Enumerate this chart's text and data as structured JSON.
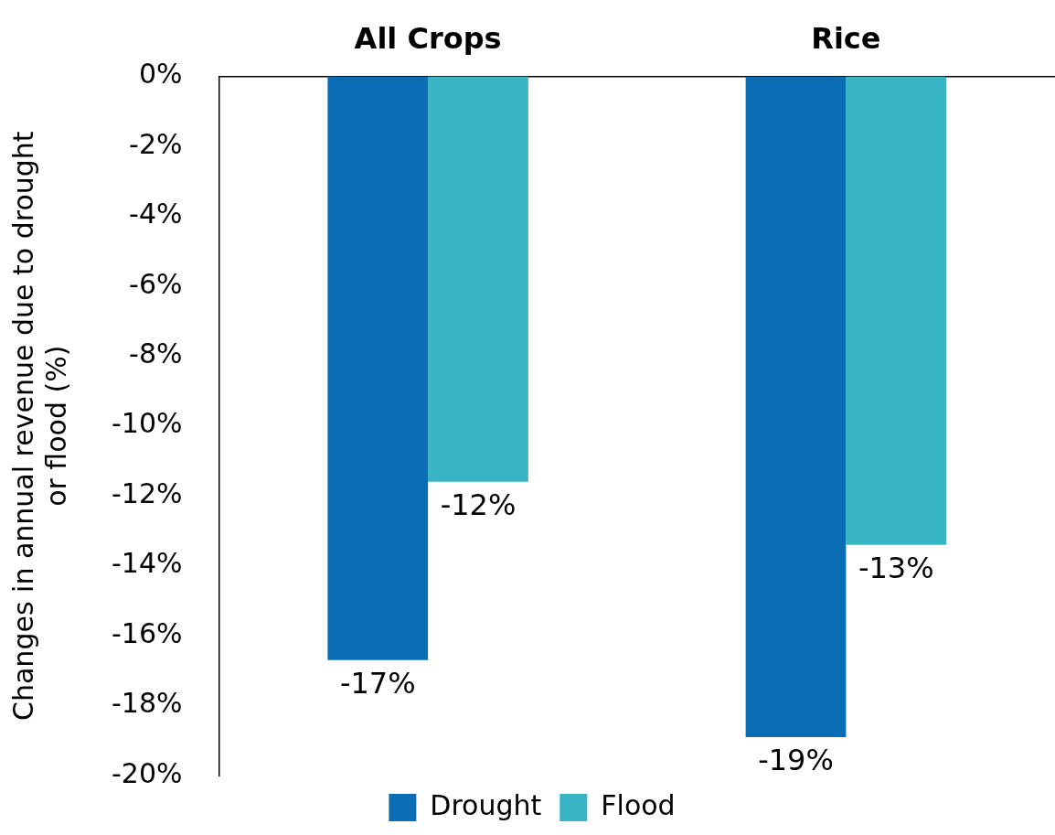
{
  "chart_data": {
    "type": "bar",
    "ylabel": "Changes in annual revenue due to drought or flood (%)",
    "categories": [
      "All Crops",
      "Rice"
    ],
    "series": [
      {
        "name": "Drought",
        "color": "#0b6eb4",
        "values": [
          -16.7,
          -18.9
        ],
        "value_labels": [
          "-17%",
          "-19%"
        ]
      },
      {
        "name": "Flood",
        "color": "#38b5c5",
        "values": [
          -11.6,
          -13.4
        ],
        "value_labels": [
          "-12%",
          "-13%"
        ]
      }
    ],
    "ylim": [
      -20,
      0
    ],
    "yticks": [
      {
        "value": -20,
        "label": "-20%"
      },
      {
        "value": -18,
        "label": "-18%"
      },
      {
        "value": -16,
        "label": "-16%"
      },
      {
        "value": -14,
        "label": "-14%"
      },
      {
        "value": -12,
        "label": "-12%"
      },
      {
        "value": -10,
        "label": "-10%"
      },
      {
        "value": -8,
        "label": "-8%"
      },
      {
        "value": -6,
        "label": "-6%"
      },
      {
        "value": -4,
        "label": "-4%"
      },
      {
        "value": -2,
        "label": "-2%"
      },
      {
        "value": 0,
        "label": "0%"
      }
    ],
    "grid": false,
    "legend": "bottom"
  }
}
